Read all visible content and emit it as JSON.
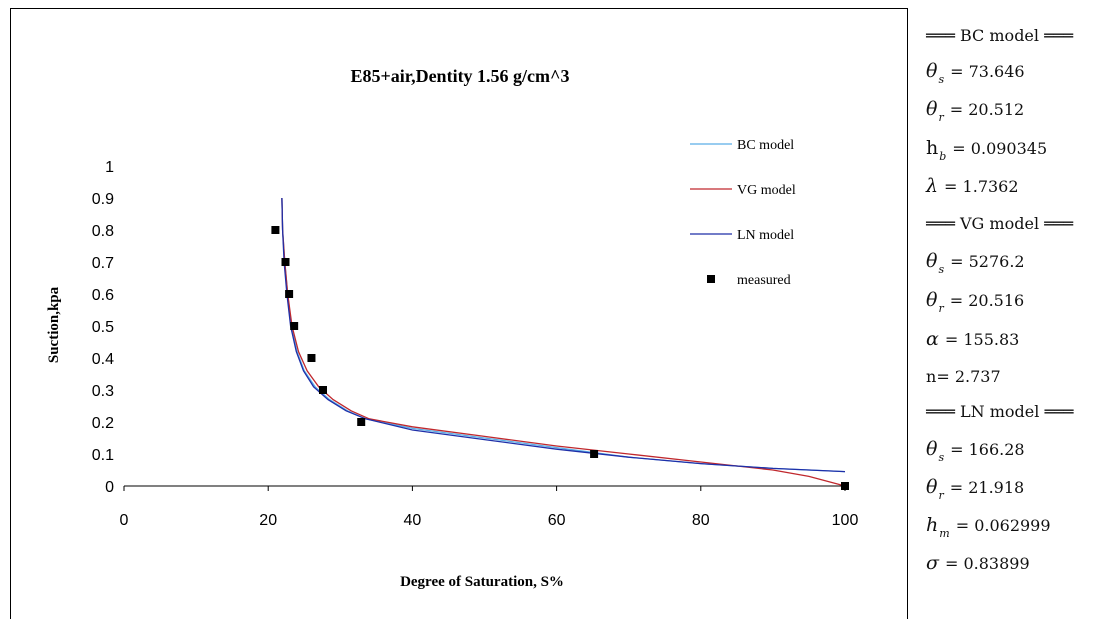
{
  "chart_data": {
    "type": "line",
    "title": "E85+air,Dentity 1.56 g/cm^3",
    "xlabel": "Degree of Saturation, S%",
    "ylabel": "Suction,kpa",
    "xlim": [
      0,
      100
    ],
    "ylim": [
      0,
      1
    ],
    "x_ticks": [
      "0",
      "20",
      "40",
      "60",
      "80",
      "100"
    ],
    "y_ticks": [
      "0",
      "0.1",
      "0.2",
      "0.3",
      "0.4",
      "0.5",
      "0.6",
      "0.7",
      "0.8",
      "0.9",
      "1"
    ],
    "grid": false,
    "legend_position": "right",
    "series": [
      {
        "name": "BC model",
        "color": "#5aaee8",
        "type": "line",
        "points": [
          [
            21.9,
            0.9
          ],
          [
            22.0,
            0.8
          ],
          [
            22.3,
            0.7
          ],
          [
            22.7,
            0.6
          ],
          [
            23.2,
            0.5
          ],
          [
            24.0,
            0.42
          ],
          [
            25.0,
            0.36
          ],
          [
            26.5,
            0.31
          ],
          [
            28.5,
            0.27
          ],
          [
            31.0,
            0.235
          ],
          [
            33.5,
            0.21
          ],
          [
            40,
            0.18
          ],
          [
            50,
            0.15
          ],
          [
            60,
            0.12
          ],
          [
            70,
            0.09
          ],
          [
            80,
            0.07
          ],
          [
            90,
            0.055
          ],
          [
            100,
            0.045
          ]
        ]
      },
      {
        "name": "VG model",
        "color": "#c0282d",
        "type": "line",
        "points": [
          [
            21.9,
            0.9
          ],
          [
            22.0,
            0.8
          ],
          [
            22.3,
            0.7
          ],
          [
            22.7,
            0.6
          ],
          [
            23.3,
            0.5
          ],
          [
            24.2,
            0.42
          ],
          [
            25.4,
            0.36
          ],
          [
            27.0,
            0.31
          ],
          [
            29.0,
            0.27
          ],
          [
            31.5,
            0.235
          ],
          [
            34,
            0.21
          ],
          [
            40,
            0.185
          ],
          [
            50,
            0.155
          ],
          [
            60,
            0.125
          ],
          [
            70,
            0.1
          ],
          [
            80,
            0.075
          ],
          [
            90,
            0.05
          ],
          [
            95,
            0.03
          ],
          [
            100,
            0.0
          ]
        ]
      },
      {
        "name": "LN model",
        "color": "#1f2fa8",
        "type": "line",
        "points": [
          [
            21.9,
            0.9
          ],
          [
            22.0,
            0.8
          ],
          [
            22.2,
            0.7
          ],
          [
            22.6,
            0.6
          ],
          [
            23.1,
            0.5
          ],
          [
            23.9,
            0.42
          ],
          [
            24.9,
            0.36
          ],
          [
            26.3,
            0.31
          ],
          [
            28.3,
            0.27
          ],
          [
            30.8,
            0.235
          ],
          [
            33.5,
            0.21
          ],
          [
            40,
            0.175
          ],
          [
            50,
            0.145
          ],
          [
            60,
            0.115
          ],
          [
            70,
            0.09
          ],
          [
            80,
            0.07
          ],
          [
            90,
            0.055
          ],
          [
            100,
            0.045
          ]
        ]
      },
      {
        "name": "measured",
        "color": "#000000",
        "type": "scatter",
        "points": [
          [
            21.0,
            0.8
          ],
          [
            22.4,
            0.7
          ],
          [
            22.9,
            0.6
          ],
          [
            23.6,
            0.5
          ],
          [
            26.0,
            0.4
          ],
          [
            27.6,
            0.3
          ],
          [
            32.9,
            0.2
          ],
          [
            65.2,
            0.1
          ],
          [
            100,
            0.0
          ]
        ]
      }
    ]
  },
  "params": {
    "bc_header": "BC model",
    "bc_theta_s": "73.646",
    "bc_theta_r": "20.512",
    "bc_hb": "0.090345",
    "bc_lambda": "1.7362",
    "vg_header": "VG model",
    "vg_theta_s": "5276.2",
    "vg_theta_r": "20.516",
    "vg_alpha": "155.83",
    "vg_n": "2.737",
    "ln_header": "LN model",
    "ln_theta_s": "166.28",
    "ln_theta_r": "21.918",
    "ln_hm": "0.062999",
    "ln_sigma": "0.83899",
    "symbols": {
      "theta": "θ",
      "lambda": "λ",
      "alpha": "α",
      "sigma": "σ",
      "h": "h",
      "n": "n",
      "sub_s": "s",
      "sub_r": "r",
      "sub_b": "b",
      "sub_m": "m",
      "equals": "=",
      "rule": "═══"
    }
  }
}
